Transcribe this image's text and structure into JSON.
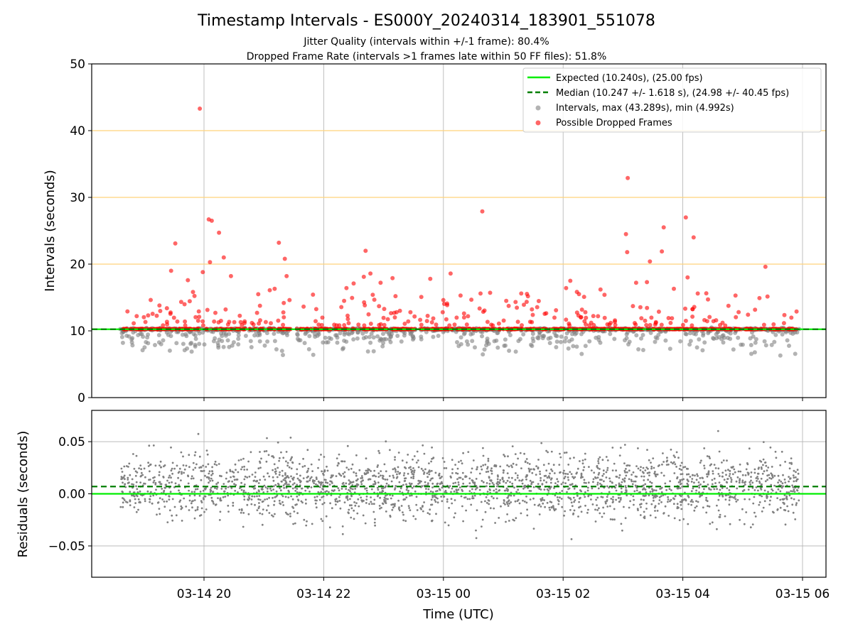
{
  "chart_data": [
    {
      "type": "scatter",
      "title": "Timestamp Intervals - ES000Y_20240314_183901_551078",
      "subtitles": [
        "Jitter Quality (intervals within +/-1 frame): 80.4%",
        "Dropped Frame Rate (intervals >1 frames late within 50 FF files): 51.8%"
      ],
      "ylabel": "Intervals (seconds)",
      "ylim": [
        0,
        50
      ],
      "yticks": [
        "0",
        "10",
        "20",
        "30",
        "40",
        "50"
      ],
      "xlim_hours": [
        18.1,
        30.4
      ],
      "grid": "vertical lines at x ticks; orange horizontal lines at 20, 30, 40",
      "reference_lines": {
        "expected": 10.24,
        "median": 10.247,
        "alert_levels": [
          20,
          30,
          40
        ]
      },
      "legend": {
        "position": "top-right",
        "entries": [
          "Expected (10.240s), (25.00 fps)",
          "Median (10.247 +/- 1.618 s), (24.98 +/- 40.45 fps)",
          "Intervals, max (43.289s), min (4.992s)",
          "Possible Dropped Frames"
        ]
      },
      "series": [
        {
          "name": "Possible Dropped Frames",
          "color": "#ff0000",
          "outliers": [
            [
              19.93,
              43.3
            ],
            [
              20.08,
              26.7
            ],
            [
              20.13,
              26.5
            ],
            [
              20.25,
              24.7
            ],
            [
              20.1,
              20.3
            ],
            [
              19.52,
              23.1
            ],
            [
              19.98,
              18.8
            ],
            [
              20.33,
              21.0
            ],
            [
              20.45,
              18.2
            ],
            [
              19.73,
              17.6
            ],
            [
              19.45,
              19.0
            ],
            [
              21.25,
              23.2
            ],
            [
              21.35,
              20.8
            ],
            [
              21.38,
              18.2
            ],
            [
              21.18,
              16.3
            ],
            [
              22.38,
              16.4
            ],
            [
              22.5,
              17.1
            ],
            [
              22.67,
              18.1
            ],
            [
              22.7,
              22.0
            ],
            [
              22.78,
              18.6
            ],
            [
              22.95,
              17.2
            ],
            [
              22.82,
              15.4
            ],
            [
              23.15,
              17.9
            ],
            [
              23.2,
              15.2
            ],
            [
              23.78,
              17.8
            ],
            [
              24.12,
              18.6
            ],
            [
              24.65,
              27.9
            ],
            [
              24.62,
              15.6
            ],
            [
              24.78,
              15.7
            ],
            [
              25.05,
              14.5
            ],
            [
              25.3,
              15.6
            ],
            [
              26.05,
              16.4
            ],
            [
              26.12,
              17.5
            ],
            [
              26.35,
              15.1
            ],
            [
              27.05,
              24.5
            ],
            [
              27.07,
              21.8
            ],
            [
              27.08,
              32.9
            ],
            [
              27.22,
              17.2
            ],
            [
              27.4,
              17.3
            ],
            [
              27.45,
              20.4
            ],
            [
              27.65,
              21.9
            ],
            [
              27.68,
              25.5
            ],
            [
              27.85,
              16.3
            ],
            [
              28.05,
              27.0
            ],
            [
              28.08,
              18.0
            ],
            [
              28.18,
              24.0
            ],
            [
              28.25,
              15.6
            ],
            [
              28.42,
              14.7
            ],
            [
              28.88,
              15.3
            ],
            [
              29.38,
              19.6
            ],
            [
              29.28,
              14.9
            ],
            [
              29.9,
              12.9
            ]
          ]
        },
        {
          "name": "Intervals, max (43.289s), min (4.992s)",
          "color": "#808080"
        }
      ]
    },
    {
      "type": "scatter",
      "ylabel": "Residuals (seconds)",
      "xlabel": "Time (UTC)",
      "ylim": [
        -0.08,
        0.08
      ],
      "yticks": [
        "0.05",
        "0.00",
        "−0.05"
      ],
      "xticks": [
        "03-14 20",
        "03-14 22",
        "03-15 00",
        "03-15 02",
        "03-15 04",
        "03-15 06"
      ],
      "grid": true,
      "reference_lines": {
        "expected": 0.0,
        "median": 0.007
      },
      "series": [
        {
          "color": "#808080"
        }
      ]
    }
  ]
}
